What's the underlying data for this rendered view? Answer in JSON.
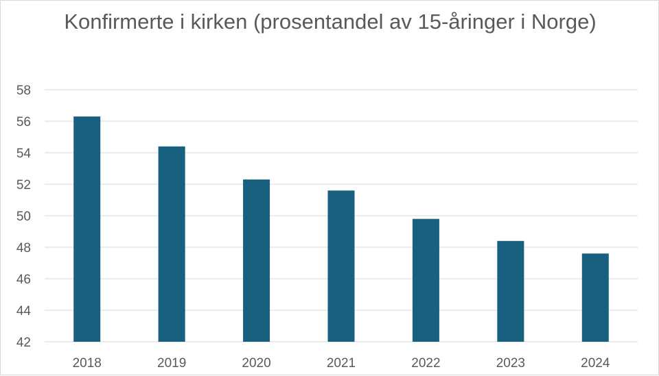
{
  "chart_data": {
    "type": "bar",
    "title": "Konfirmerte i kirken (prosentandel av 15-åringer i Norge)",
    "categories": [
      "2018",
      "2019",
      "2020",
      "2021",
      "2022",
      "2023",
      "2024"
    ],
    "values": [
      56.3,
      54.4,
      52.3,
      51.6,
      49.8,
      48.4,
      47.6
    ],
    "ylim": [
      42,
      58
    ],
    "yticks": [
      "42",
      "44",
      "46",
      "48",
      "50",
      "52",
      "54",
      "56",
      "58"
    ],
    "xlabel": "",
    "ylabel": "",
    "grid": true,
    "legend": "none",
    "bar_color": "#17607f"
  }
}
